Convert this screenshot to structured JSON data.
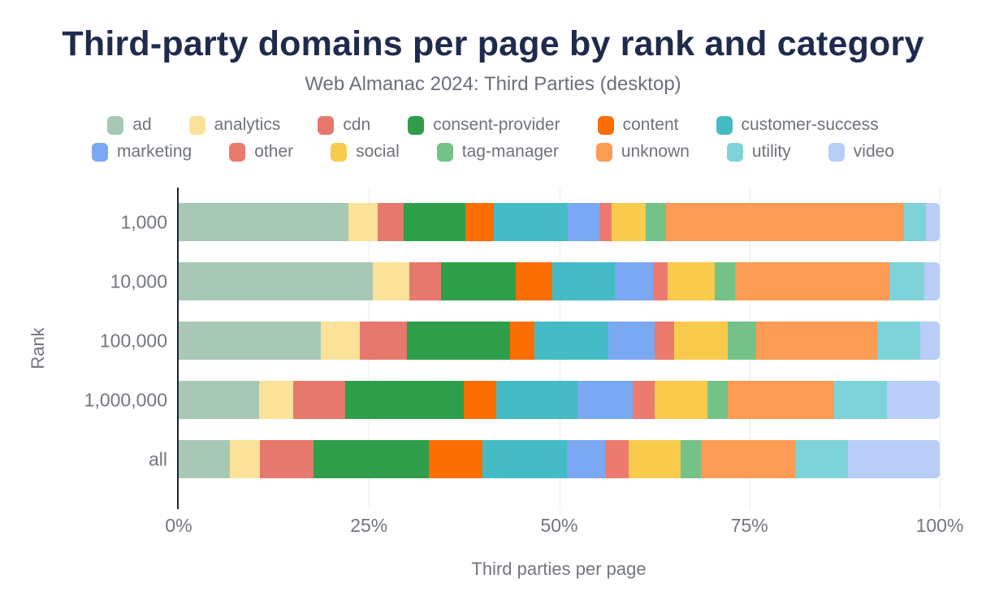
{
  "header": {
    "title": "Third-party domains per page by rank and category",
    "subtitle": "Web Almanac 2024: Third Parties (desktop)"
  },
  "chart_data": {
    "type": "bar",
    "orientation": "horizontal",
    "stacked": true,
    "unit": "%",
    "title": "Third-party domains per page by rank and category",
    "subtitle": "Web Almanac 2024: Third Parties (desktop)",
    "xlabel": "Third parties per page",
    "ylabel": "Rank",
    "xlim": [
      0,
      100
    ],
    "x_ticks": [
      "0%",
      "25%",
      "50%",
      "75%",
      "100%"
    ],
    "x_tick_values": [
      0,
      25,
      50,
      75,
      100
    ],
    "grid": "vertical-light",
    "legend_position": "top",
    "legend_row_split": 6,
    "categories": [
      "1,000",
      "10,000",
      "100,000",
      "1,000,000",
      "all"
    ],
    "series": [
      {
        "name": "ad",
        "color": "#a6c8b4",
        "values": [
          22.3,
          25.5,
          18.7,
          10.6,
          6.7
        ]
      },
      {
        "name": "analytics",
        "color": "#fbe298",
        "values": [
          3.8,
          4.8,
          5.1,
          4.4,
          4.0
        ]
      },
      {
        "name": "cdn",
        "color": "#e6786e",
        "values": [
          3.5,
          4.2,
          6.2,
          6.9,
          7.0
        ]
      },
      {
        "name": "consent-provider",
        "color": "#2e9e4b",
        "values": [
          8.1,
          9.8,
          13.5,
          15.6,
          15.2
        ]
      },
      {
        "name": "content",
        "color": "#fb6e02",
        "values": [
          3.7,
          4.8,
          3.3,
          4.2,
          7.0
        ]
      },
      {
        "name": "customer-success",
        "color": "#45bcc5",
        "values": [
          9.7,
          8.2,
          9.7,
          10.7,
          11.1
        ]
      },
      {
        "name": "marketing",
        "color": "#7aa8f2",
        "values": [
          4.2,
          5.0,
          6.0,
          7.3,
          5.0
        ]
      },
      {
        "name": "other",
        "color": "#ed7a6e",
        "values": [
          1.6,
          2.0,
          2.6,
          2.8,
          3.1
        ]
      },
      {
        "name": "social",
        "color": "#f8cb4c",
        "values": [
          4.5,
          6.1,
          7.1,
          7.0,
          6.9
        ]
      },
      {
        "name": "tag-manager",
        "color": "#74c287",
        "values": [
          2.6,
          2.7,
          3.7,
          2.6,
          2.6
        ]
      },
      {
        "name": "unknown",
        "color": "#fc9b54",
        "values": [
          31.3,
          20.3,
          15.9,
          14.0,
          12.4
        ]
      },
      {
        "name": "utility",
        "color": "#7ed3d9",
        "values": [
          2.9,
          4.6,
          5.6,
          7.0,
          7.0
        ]
      },
      {
        "name": "video",
        "color": "#b8cdf8",
        "values": [
          1.8,
          2.0,
          2.6,
          6.9,
          12.0
        ]
      }
    ],
    "colors": {
      "title_text": "#1e2b4d",
      "muted_text": "#72767e",
      "axis_line": "#13233f",
      "gridline": "#e9ebee",
      "background": "#ffffff"
    }
  }
}
